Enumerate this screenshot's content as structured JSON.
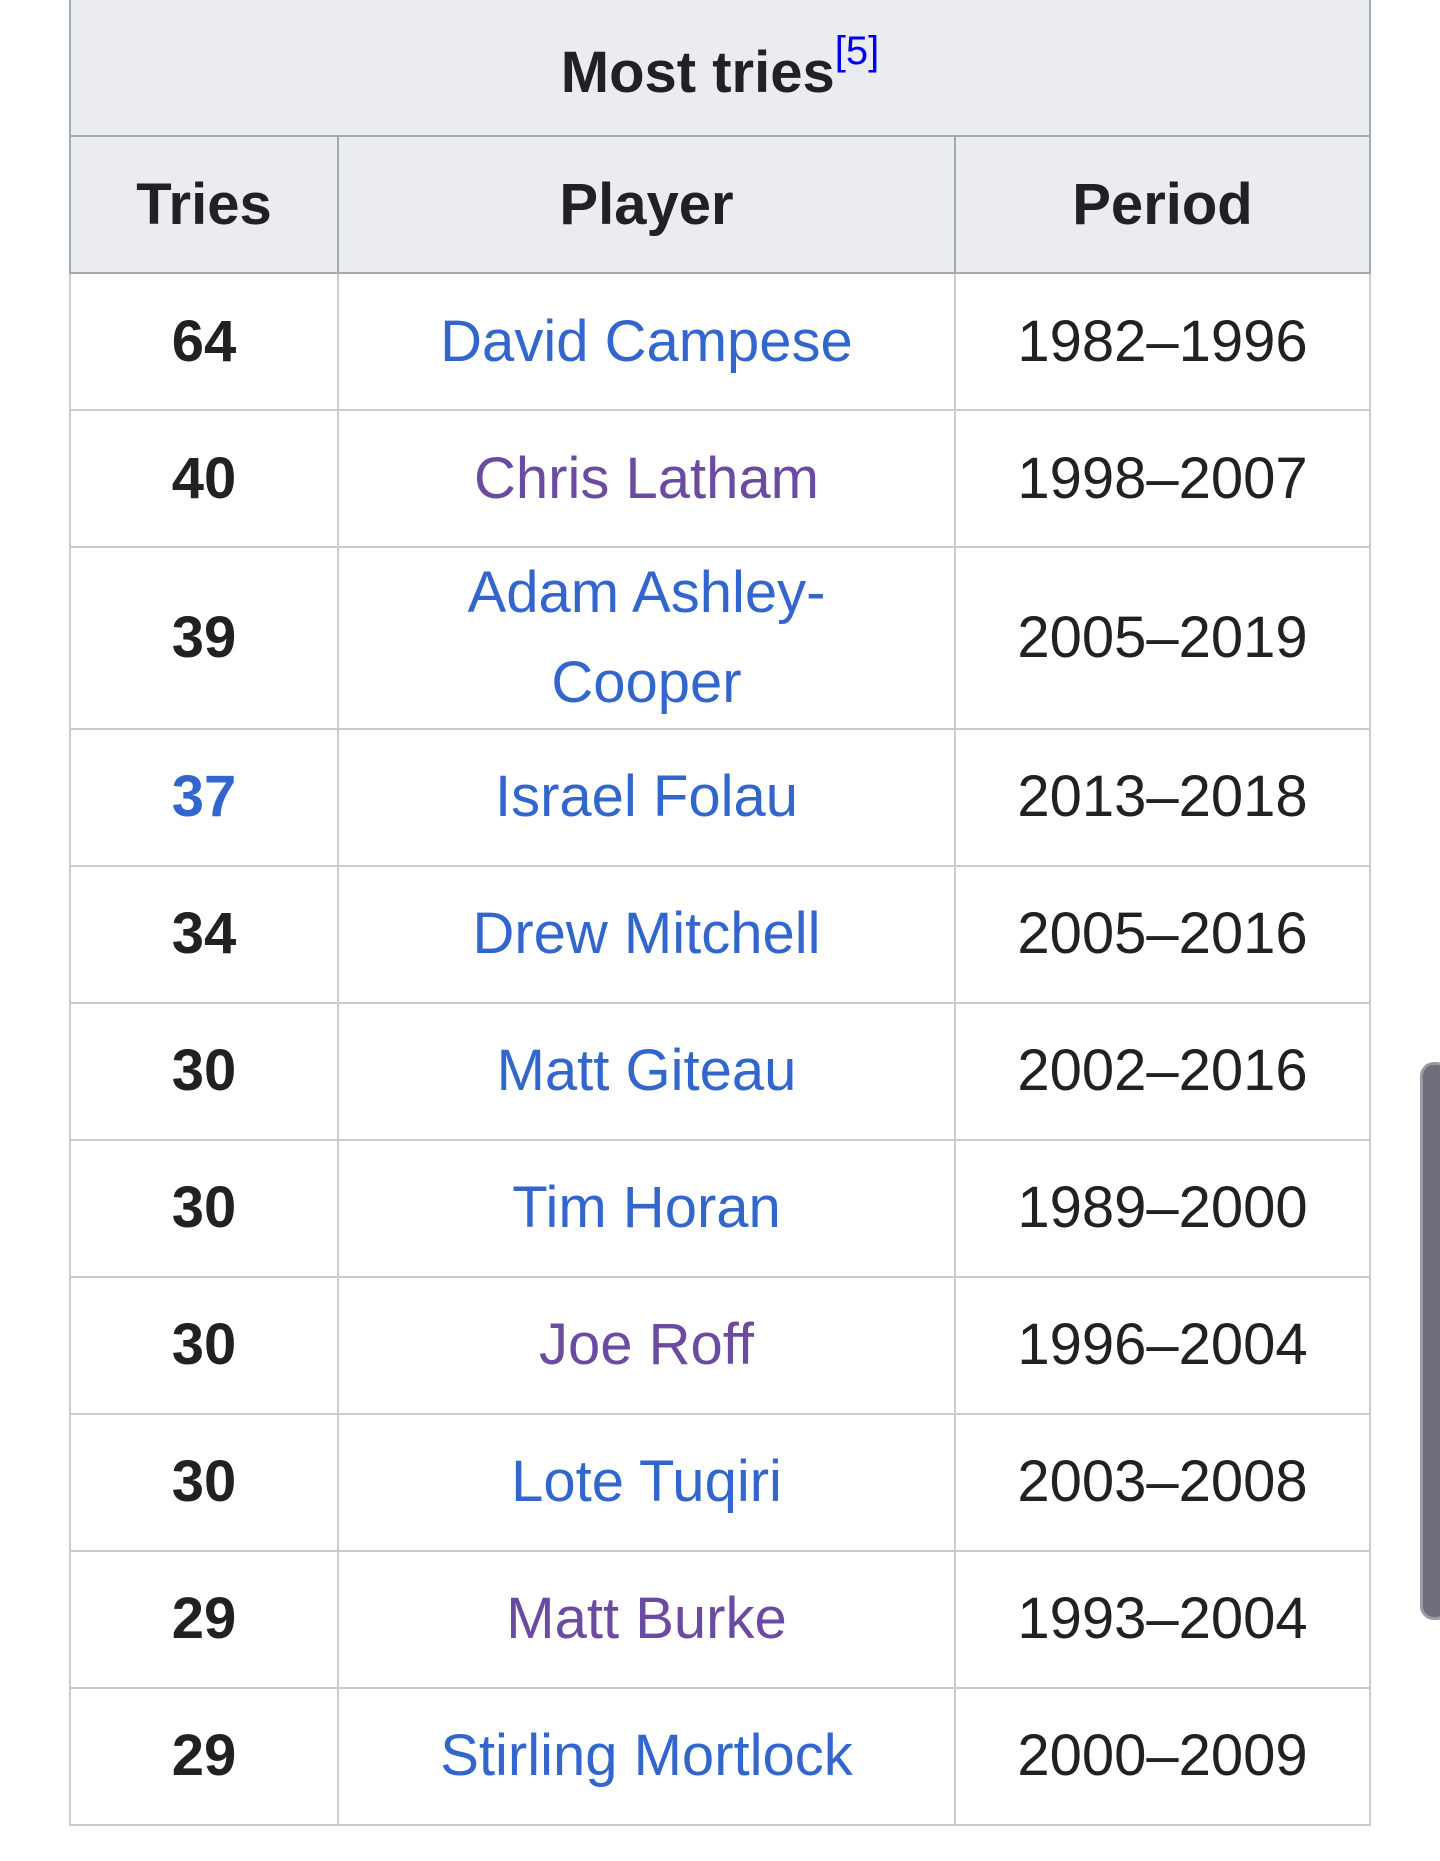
{
  "table": {
    "caption": "Most tries",
    "caption_ref": "[5]",
    "headers": [
      "Tries",
      "Player",
      "Period"
    ],
    "rows": [
      {
        "tries": "64",
        "player": "David Campese",
        "period": "1982–1996",
        "player_visited": false,
        "tries_link": false
      },
      {
        "tries": "40",
        "player": "Chris Latham",
        "period": "1998–2007",
        "player_visited": true,
        "tries_link": false
      },
      {
        "tries": "39",
        "player": "Adam Ashley-Cooper",
        "period": "2005–2019",
        "player_visited": false,
        "tries_link": false
      },
      {
        "tries": "37",
        "player": "Israel Folau",
        "period": "2013–2018",
        "player_visited": false,
        "tries_link": true
      },
      {
        "tries": "34",
        "player": "Drew Mitchell",
        "period": "2005–2016",
        "player_visited": false,
        "tries_link": false
      },
      {
        "tries": "30",
        "player": "Matt Giteau",
        "period": "2002–2016",
        "player_visited": false,
        "tries_link": false
      },
      {
        "tries": "30",
        "player": "Tim Horan",
        "period": "1989–2000",
        "player_visited": false,
        "tries_link": false
      },
      {
        "tries": "30",
        "player": "Joe Roff",
        "period": "1996–2004",
        "player_visited": true,
        "tries_link": false
      },
      {
        "tries": "30",
        "player": "Lote Tuqiri",
        "period": "2003–2008",
        "player_visited": false,
        "tries_link": false
      },
      {
        "tries": "29",
        "player": "Matt Burke",
        "period": "1993–2004",
        "player_visited": true,
        "tries_link": false
      },
      {
        "tries": "29",
        "player": "Stirling Mortlock",
        "period": "2000–2009",
        "player_visited": false,
        "tries_link": false
      }
    ]
  },
  "colors": {
    "link": "#3366cc",
    "visited": "#6b4ba1",
    "header_bg": "#eaecf0",
    "scrollbar": "#6e6e7a"
  }
}
